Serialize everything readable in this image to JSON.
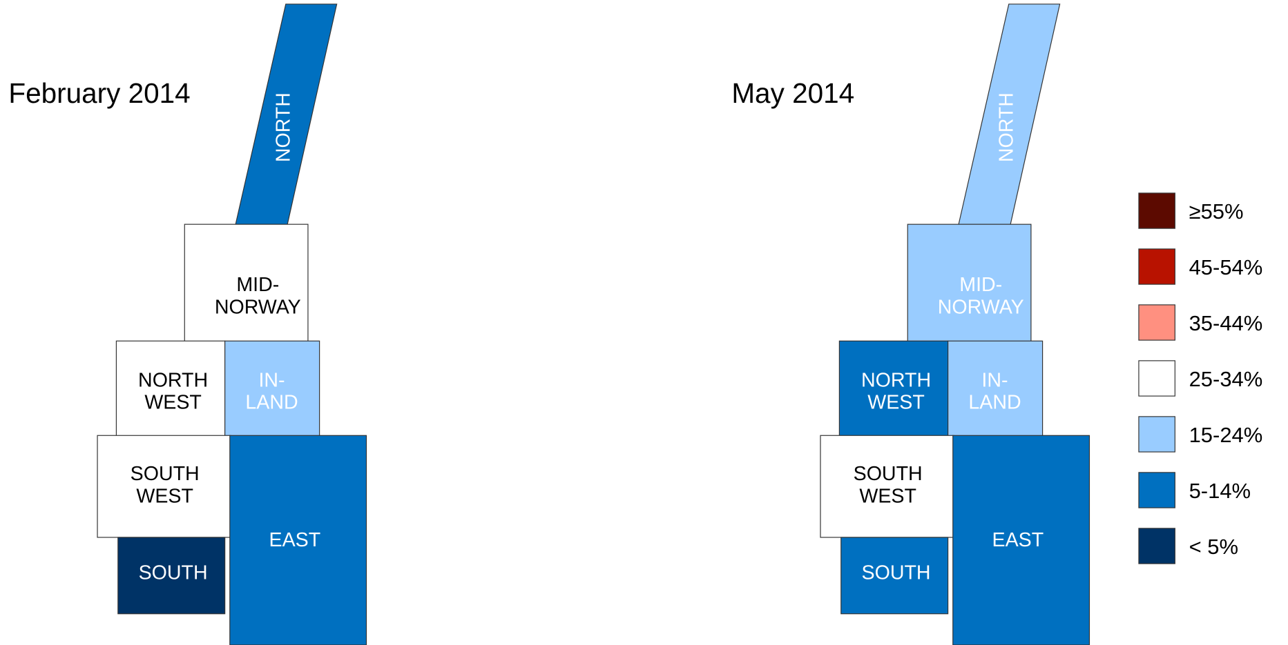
{
  "maps": [
    {
      "title": "February 2014",
      "regions": [
        {
          "label": [
            "NORTH"
          ],
          "color": "#0070c0"
        },
        {
          "label": [
            "MID-",
            "NORWAY"
          ],
          "color": "#ffffff"
        },
        {
          "label": [
            "NORTH",
            "WEST"
          ],
          "color": "#ffffff"
        },
        {
          "label": [
            "IN-",
            "LAND"
          ],
          "color": "#99ccff"
        },
        {
          "label": [
            "SOUTH",
            "WEST"
          ],
          "color": "#ffffff"
        },
        {
          "label": [
            "SOUTH"
          ],
          "color": "#003366"
        },
        {
          "label": [
            "EAST"
          ],
          "color": "#0070c0"
        }
      ]
    },
    {
      "title": "May 2014",
      "regions": [
        {
          "label": [
            "NORTH"
          ],
          "color": "#99ccff"
        },
        {
          "label": [
            "MID-",
            "NORWAY"
          ],
          "color": "#99ccff"
        },
        {
          "label": [
            "NORTH",
            "WEST"
          ],
          "color": "#0070c0"
        },
        {
          "label": [
            "IN-",
            "LAND"
          ],
          "color": "#99ccff"
        },
        {
          "label": [
            "SOUTH",
            "WEST"
          ],
          "color": "#ffffff"
        },
        {
          "label": [
            "SOUTH"
          ],
          "color": "#0070c0"
        },
        {
          "label": [
            "EAST"
          ],
          "color": "#0070c0"
        }
      ]
    }
  ],
  "legend": [
    {
      "label": "≥55%",
      "color": "#5c0a00"
    },
    {
      "label": "45-54%",
      "color": "#b81200"
    },
    {
      "label": "35-44%",
      "color": "#ff9080"
    },
    {
      "label": "25-34%",
      "color": "#ffffff"
    },
    {
      "label": "15-24%",
      "color": "#99ccff"
    },
    {
      "label": "5-14%",
      "color": "#0070c0"
    },
    {
      "label": "< 5%",
      "color": "#003366"
    }
  ]
}
